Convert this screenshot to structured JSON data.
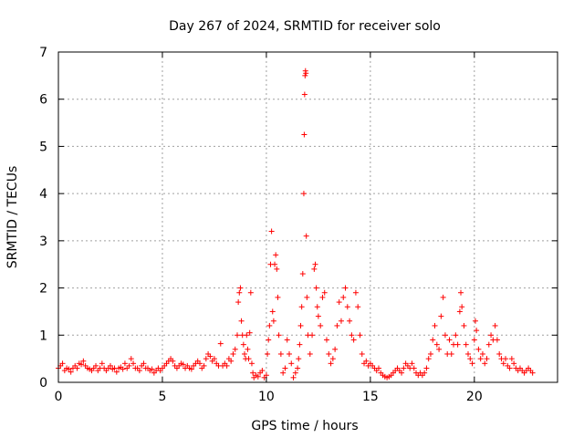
{
  "chart_data": {
    "type": "scatter",
    "title": "Day 267 of 2024, SRMTID for receiver solo",
    "xlabel": "GPS time / hours",
    "ylabel": "SRMTID / TECUs",
    "xlim": [
      0,
      24
    ],
    "ylim": [
      0,
      7
    ],
    "xticks": [
      0,
      5,
      10,
      15,
      20
    ],
    "yticks": [
      0,
      1,
      2,
      3,
      4,
      5,
      6,
      7
    ],
    "grid": true,
    "marker": "+",
    "color": "#ff0000",
    "series": [
      {
        "name": "SRMTID",
        "points": [
          [
            0.0,
            0.3
          ],
          [
            0.1,
            0.35
          ],
          [
            0.2,
            0.4
          ],
          [
            0.3,
            0.25
          ],
          [
            0.4,
            0.3
          ],
          [
            0.5,
            0.28
          ],
          [
            0.6,
            0.22
          ],
          [
            0.7,
            0.3
          ],
          [
            0.8,
            0.35
          ],
          [
            0.9,
            0.3
          ],
          [
            1.0,
            0.4
          ],
          [
            1.1,
            0.38
          ],
          [
            1.2,
            0.45
          ],
          [
            1.3,
            0.35
          ],
          [
            1.4,
            0.3
          ],
          [
            1.5,
            0.28
          ],
          [
            1.6,
            0.25
          ],
          [
            1.7,
            0.3
          ],
          [
            1.8,
            0.35
          ],
          [
            1.9,
            0.25
          ],
          [
            2.0,
            0.3
          ],
          [
            2.1,
            0.4
          ],
          [
            2.2,
            0.3
          ],
          [
            2.3,
            0.25
          ],
          [
            2.4,
            0.3
          ],
          [
            2.5,
            0.35
          ],
          [
            2.6,
            0.28
          ],
          [
            2.7,
            0.3
          ],
          [
            2.8,
            0.22
          ],
          [
            2.9,
            0.3
          ],
          [
            3.0,
            0.32
          ],
          [
            3.1,
            0.28
          ],
          [
            3.2,
            0.4
          ],
          [
            3.3,
            0.3
          ],
          [
            3.4,
            0.35
          ],
          [
            3.5,
            0.5
          ],
          [
            3.6,
            0.4
          ],
          [
            3.7,
            0.3
          ],
          [
            3.8,
            0.3
          ],
          [
            3.9,
            0.25
          ],
          [
            4.0,
            0.35
          ],
          [
            4.1,
            0.4
          ],
          [
            4.2,
            0.3
          ],
          [
            4.3,
            0.3
          ],
          [
            4.4,
            0.25
          ],
          [
            4.5,
            0.28
          ],
          [
            4.6,
            0.2
          ],
          [
            4.7,
            0.25
          ],
          [
            4.8,
            0.3
          ],
          [
            4.9,
            0.25
          ],
          [
            5.0,
            0.3
          ],
          [
            5.1,
            0.35
          ],
          [
            5.2,
            0.4
          ],
          [
            5.3,
            0.45
          ],
          [
            5.4,
            0.5
          ],
          [
            5.5,
            0.45
          ],
          [
            5.6,
            0.35
          ],
          [
            5.7,
            0.3
          ],
          [
            5.8,
            0.35
          ],
          [
            5.9,
            0.4
          ],
          [
            6.0,
            0.38
          ],
          [
            6.1,
            0.3
          ],
          [
            6.2,
            0.35
          ],
          [
            6.3,
            0.3
          ],
          [
            6.4,
            0.28
          ],
          [
            6.5,
            0.35
          ],
          [
            6.6,
            0.4
          ],
          [
            6.7,
            0.45
          ],
          [
            6.8,
            0.4
          ],
          [
            6.9,
            0.3
          ],
          [
            7.0,
            0.35
          ],
          [
            7.1,
            0.5
          ],
          [
            7.2,
            0.6
          ],
          [
            7.3,
            0.55
          ],
          [
            7.4,
            0.45
          ],
          [
            7.5,
            0.5
          ],
          [
            7.6,
            0.4
          ],
          [
            7.7,
            0.35
          ],
          [
            7.8,
            0.82
          ],
          [
            7.9,
            0.35
          ],
          [
            8.0,
            0.4
          ],
          [
            8.1,
            0.35
          ],
          [
            8.2,
            0.5
          ],
          [
            8.3,
            0.45
          ],
          [
            8.4,
            0.6
          ],
          [
            8.5,
            0.7
          ],
          [
            8.6,
            1.0
          ],
          [
            8.65,
            1.7
          ],
          [
            8.7,
            1.9
          ],
          [
            8.75,
            2.0
          ],
          [
            8.8,
            1.3
          ],
          [
            8.85,
            1.0
          ],
          [
            8.9,
            0.8
          ],
          [
            8.95,
            0.6
          ],
          [
            9.0,
            0.5
          ],
          [
            9.05,
            1.0
          ],
          [
            9.1,
            0.7
          ],
          [
            9.15,
            0.5
          ],
          [
            9.2,
            1.05
          ],
          [
            9.25,
            1.9
          ],
          [
            9.3,
            0.4
          ],
          [
            9.35,
            0.2
          ],
          [
            9.4,
            0.1
          ],
          [
            9.5,
            0.15
          ],
          [
            9.6,
            0.12
          ],
          [
            9.7,
            0.2
          ],
          [
            9.8,
            0.25
          ],
          [
            9.9,
            0.1
          ],
          [
            10.0,
            0.15
          ],
          [
            10.05,
            0.6
          ],
          [
            10.1,
            0.9
          ],
          [
            10.15,
            1.2
          ],
          [
            10.2,
            2.5
          ],
          [
            10.25,
            3.2
          ],
          [
            10.3,
            1.5
          ],
          [
            10.35,
            1.3
          ],
          [
            10.4,
            2.5
          ],
          [
            10.45,
            2.7
          ],
          [
            10.5,
            2.4
          ],
          [
            10.55,
            1.8
          ],
          [
            10.6,
            1.0
          ],
          [
            10.7,
            0.6
          ],
          [
            10.8,
            0.2
          ],
          [
            10.9,
            0.3
          ],
          [
            11.0,
            0.9
          ],
          [
            11.1,
            0.6
          ],
          [
            11.2,
            0.4
          ],
          [
            11.3,
            0.1
          ],
          [
            11.4,
            0.2
          ],
          [
            11.5,
            0.3
          ],
          [
            11.55,
            0.5
          ],
          [
            11.6,
            0.8
          ],
          [
            11.65,
            1.2
          ],
          [
            11.7,
            1.6
          ],
          [
            11.75,
            2.3
          ],
          [
            11.8,
            4.0
          ],
          [
            11.82,
            5.25
          ],
          [
            11.84,
            6.1
          ],
          [
            11.86,
            6.5
          ],
          [
            11.88,
            6.6
          ],
          [
            11.9,
            6.55
          ],
          [
            11.92,
            3.1
          ],
          [
            11.95,
            1.8
          ],
          [
            12.0,
            1.0
          ],
          [
            12.1,
            0.6
          ],
          [
            12.2,
            1.0
          ],
          [
            12.3,
            2.4
          ],
          [
            12.35,
            2.5
          ],
          [
            12.4,
            2.0
          ],
          [
            12.45,
            1.6
          ],
          [
            12.5,
            1.4
          ],
          [
            12.6,
            1.2
          ],
          [
            12.7,
            1.8
          ],
          [
            12.8,
            1.9
          ],
          [
            12.9,
            0.9
          ],
          [
            13.0,
            0.6
          ],
          [
            13.1,
            0.4
          ],
          [
            13.2,
            0.5
          ],
          [
            13.3,
            0.7
          ],
          [
            13.4,
            1.2
          ],
          [
            13.5,
            1.7
          ],
          [
            13.6,
            1.3
          ],
          [
            13.7,
            1.8
          ],
          [
            13.8,
            2.0
          ],
          [
            13.9,
            1.6
          ],
          [
            14.0,
            1.3
          ],
          [
            14.1,
            1.0
          ],
          [
            14.2,
            0.9
          ],
          [
            14.3,
            1.9
          ],
          [
            14.4,
            1.6
          ],
          [
            14.5,
            1.0
          ],
          [
            14.6,
            0.6
          ],
          [
            14.7,
            0.4
          ],
          [
            14.8,
            0.45
          ],
          [
            14.9,
            0.35
          ],
          [
            15.0,
            0.4
          ],
          [
            15.1,
            0.35
          ],
          [
            15.2,
            0.3
          ],
          [
            15.3,
            0.25
          ],
          [
            15.4,
            0.3
          ],
          [
            15.5,
            0.2
          ],
          [
            15.6,
            0.15
          ],
          [
            15.7,
            0.12
          ],
          [
            15.8,
            0.1
          ],
          [
            15.9,
            0.12
          ],
          [
            16.0,
            0.15
          ],
          [
            16.1,
            0.2
          ],
          [
            16.2,
            0.25
          ],
          [
            16.3,
            0.3
          ],
          [
            16.4,
            0.25
          ],
          [
            16.5,
            0.2
          ],
          [
            16.6,
            0.3
          ],
          [
            16.7,
            0.4
          ],
          [
            16.8,
            0.35
          ],
          [
            16.9,
            0.3
          ],
          [
            17.0,
            0.4
          ],
          [
            17.1,
            0.3
          ],
          [
            17.2,
            0.2
          ],
          [
            17.3,
            0.15
          ],
          [
            17.4,
            0.2
          ],
          [
            17.5,
            0.15
          ],
          [
            17.6,
            0.2
          ],
          [
            17.7,
            0.3
          ],
          [
            17.8,
            0.5
          ],
          [
            17.9,
            0.6
          ],
          [
            18.0,
            0.9
          ],
          [
            18.1,
            1.2
          ],
          [
            18.2,
            0.8
          ],
          [
            18.3,
            0.7
          ],
          [
            18.4,
            1.4
          ],
          [
            18.5,
            1.8
          ],
          [
            18.6,
            1.0
          ],
          [
            18.7,
            0.6
          ],
          [
            18.8,
            0.9
          ],
          [
            18.9,
            0.6
          ],
          [
            19.0,
            0.8
          ],
          [
            19.1,
            1.0
          ],
          [
            19.2,
            0.8
          ],
          [
            19.3,
            1.5
          ],
          [
            19.35,
            1.9
          ],
          [
            19.4,
            1.6
          ],
          [
            19.5,
            1.2
          ],
          [
            19.6,
            0.8
          ],
          [
            19.7,
            0.6
          ],
          [
            19.8,
            0.5
          ],
          [
            19.9,
            0.4
          ],
          [
            20.0,
            0.9
          ],
          [
            20.05,
            1.3
          ],
          [
            20.1,
            1.1
          ],
          [
            20.2,
            0.7
          ],
          [
            20.3,
            0.5
          ],
          [
            20.4,
            0.6
          ],
          [
            20.5,
            0.4
          ],
          [
            20.6,
            0.5
          ],
          [
            20.7,
            0.8
          ],
          [
            20.8,
            1.0
          ],
          [
            20.9,
            0.9
          ],
          [
            21.0,
            1.2
          ],
          [
            21.1,
            0.9
          ],
          [
            21.2,
            0.6
          ],
          [
            21.3,
            0.5
          ],
          [
            21.4,
            0.4
          ],
          [
            21.5,
            0.5
          ],
          [
            21.6,
            0.35
          ],
          [
            21.7,
            0.3
          ],
          [
            21.8,
            0.5
          ],
          [
            21.9,
            0.4
          ],
          [
            22.0,
            0.3
          ],
          [
            22.1,
            0.25
          ],
          [
            22.2,
            0.3
          ],
          [
            22.3,
            0.25
          ],
          [
            22.4,
            0.2
          ],
          [
            22.5,
            0.25
          ],
          [
            22.6,
            0.3
          ],
          [
            22.7,
            0.25
          ],
          [
            22.8,
            0.2
          ]
        ]
      }
    ]
  }
}
